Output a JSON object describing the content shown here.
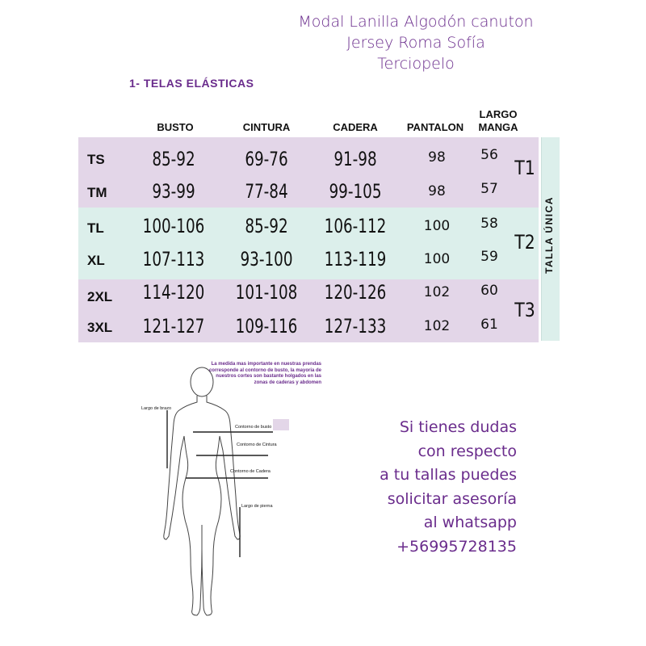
{
  "fabrics": {
    "line1": "Modal  Lanilla  Algodón  canuton",
    "line2": "Jersey  Roma  Sofía",
    "line3": "Terciopelo"
  },
  "section_title": "1- TELAS  ELÁSTICAS",
  "table": {
    "headers": {
      "busto": "BUSTO",
      "cintura": "CINTURA",
      "cadera": "CADERA",
      "pantalon": "PANTALON",
      "manga_1": "LARGO",
      "manga_2": "MANGA"
    },
    "rows": [
      {
        "size": "TS",
        "busto": "85-92",
        "cintura": "69-76",
        "cadera": "91-98",
        "pantalon": "98",
        "manga": "56"
      },
      {
        "size": "TM",
        "busto": "93-99",
        "cintura": "77-84",
        "cadera": "99-105",
        "pantalon": "98",
        "manga": "57"
      },
      {
        "size": "TL",
        "busto": "100-106",
        "cintura": "85-92",
        "cadera": "106-112",
        "pantalon": "100",
        "manga": "58"
      },
      {
        "size": "XL",
        "busto": "107-113",
        "cintura": "93-100",
        "cadera": "113-119",
        "pantalon": "100",
        "manga": "59"
      },
      {
        "size": "2XL",
        "busto": "114-120",
        "cintura": "101-108",
        "cadera": "120-126",
        "pantalon": "102",
        "manga": "60"
      },
      {
        "size": "3XL",
        "busto": "121-127",
        "cintura": "109-116",
        "cadera": "127-133",
        "pantalon": "102",
        "manga": "61"
      }
    ],
    "groups": [
      "T1",
      "T2",
      "T3"
    ],
    "talla_unica": "TALLA ÚNICA",
    "colors": {
      "purple_band": "#e3d6e8",
      "teal_band": "#dcefeb",
      "accent": "#6a2c8c"
    }
  },
  "diagram": {
    "note": "La medida mas importante en nuestras prendas corresponde al contorno de busto, la mayoria de nuestros cortes son bastante holgados en las zonas de caderas y abdomen",
    "labels": {
      "largo_brazo": "Largo de brazo",
      "contorno_busto": "Contorno de busto",
      "contorno_cintura": "Contorno de Cintura",
      "contorno_cadera": "Contorno de Cadera",
      "largo_pierna": "Largo de pierna"
    }
  },
  "help_text": {
    "line1": "Si tienes dudas",
    "line2": "con respecto",
    "line3": "a tu tallas puedes",
    "line4": "solicitar asesoría",
    "line5": "al whatsapp",
    "line6": "+56995728135"
  }
}
